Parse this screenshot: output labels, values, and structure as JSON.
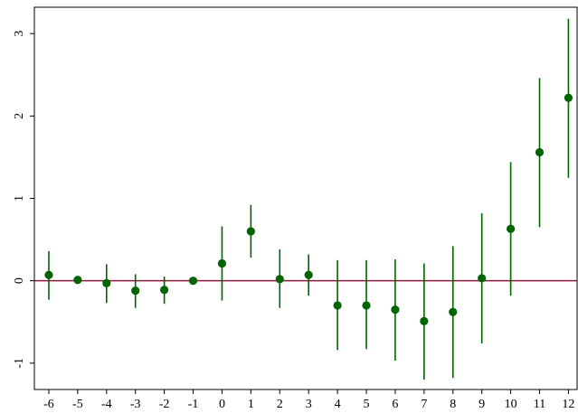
{
  "chart_data": {
    "type": "scatter",
    "title": "",
    "xlabel": "",
    "ylabel": "",
    "x": [
      -6,
      -5,
      -4,
      -3,
      -2,
      -1,
      0,
      1,
      2,
      3,
      4,
      5,
      6,
      7,
      8,
      9,
      10,
      11,
      12
    ],
    "y": [
      0.07,
      0.01,
      -0.03,
      -0.12,
      -0.11,
      0.0,
      0.21,
      0.6,
      0.02,
      0.07,
      -0.3,
      -0.3,
      -0.35,
      -0.49,
      -0.38,
      0.03,
      0.63,
      1.56,
      2.22
    ],
    "ci_low": [
      -0.23,
      0.0,
      -0.27,
      -0.33,
      -0.28,
      0.0,
      -0.24,
      0.28,
      -0.33,
      -0.18,
      -0.84,
      -0.83,
      -0.97,
      -1.2,
      -1.18,
      -0.76,
      -0.18,
      0.65,
      1.25
    ],
    "ci_high": [
      0.36,
      0.0,
      0.2,
      0.08,
      0.05,
      0.0,
      0.66,
      0.92,
      0.38,
      0.32,
      0.25,
      0.25,
      0.26,
      0.21,
      0.42,
      0.82,
      1.44,
      2.46,
      3.18
    ],
    "xticks": [
      "-6",
      "-5",
      "-4",
      "-3",
      "-2",
      "-1",
      "0",
      "1",
      "2",
      "3",
      "4",
      "5",
      "6",
      "7",
      "8",
      "9",
      "10",
      "11",
      "12"
    ],
    "yticks": [
      "-1",
      "0",
      "1",
      "2",
      "3"
    ],
    "ytick_values": [
      -1,
      0,
      1,
      2,
      3
    ],
    "xlim": [
      -6.5,
      12.3
    ],
    "ylim": [
      -1.32,
      3.32
    ],
    "reference_line_y": 0,
    "grid": false,
    "colors": {
      "points": "#006400",
      "error_bars": "#006400",
      "reference_line": "#8b1a3a",
      "axes": "#000000"
    }
  }
}
